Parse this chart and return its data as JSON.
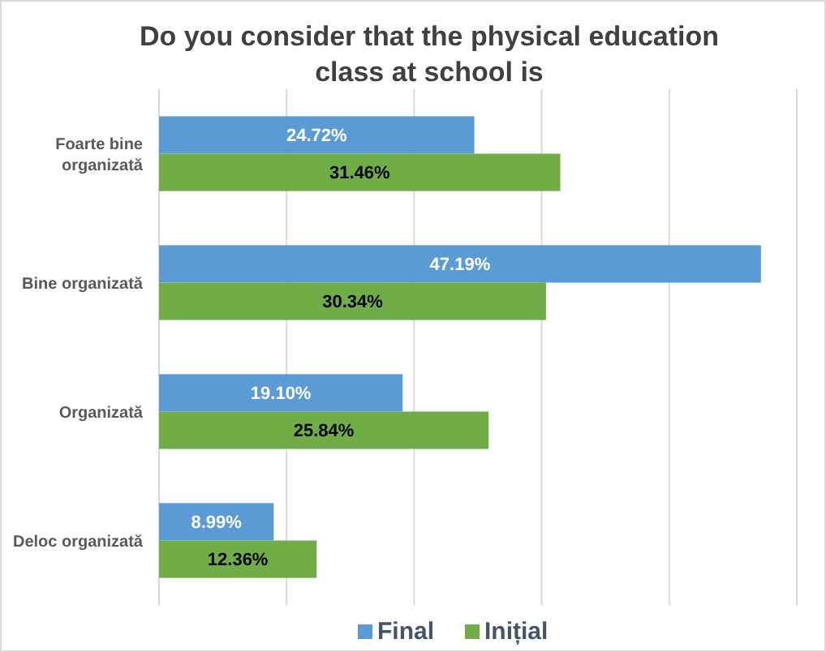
{
  "chart_data": {
    "type": "bar",
    "orientation": "horizontal",
    "title": "Do you consider that the physical education class at school is",
    "categories": [
      "Foarte bine organizată",
      "Bine organizată",
      "Organizată",
      "Deloc organizată"
    ],
    "series": [
      {
        "name": "Final",
        "color": "#5b9bd5",
        "values": [
          24.72,
          47.19,
          19.1,
          8.99
        ],
        "value_labels": [
          "24.72%",
          "47.19%",
          "19.10%",
          "8.99%"
        ]
      },
      {
        "name": "Inițial",
        "color": "#70ad47",
        "values": [
          31.46,
          30.34,
          25.84,
          12.36
        ],
        "value_labels": [
          "31.46%",
          "30.34%",
          "25.84%",
          "12.36%"
        ]
      }
    ],
    "xlim": [
      0,
      50
    ],
    "xticks": [
      {
        "value": 0,
        "label": null
      },
      {
        "value": 10,
        "label": null
      },
      {
        "value": 20,
        "label": null
      },
      {
        "value": 30,
        "label": null
      },
      {
        "value": 40,
        "label": null
      },
      {
        "value": 50,
        "label": null
      }
    ],
    "grid": "x",
    "tick_labels": "y",
    "legend": "bottom"
  }
}
